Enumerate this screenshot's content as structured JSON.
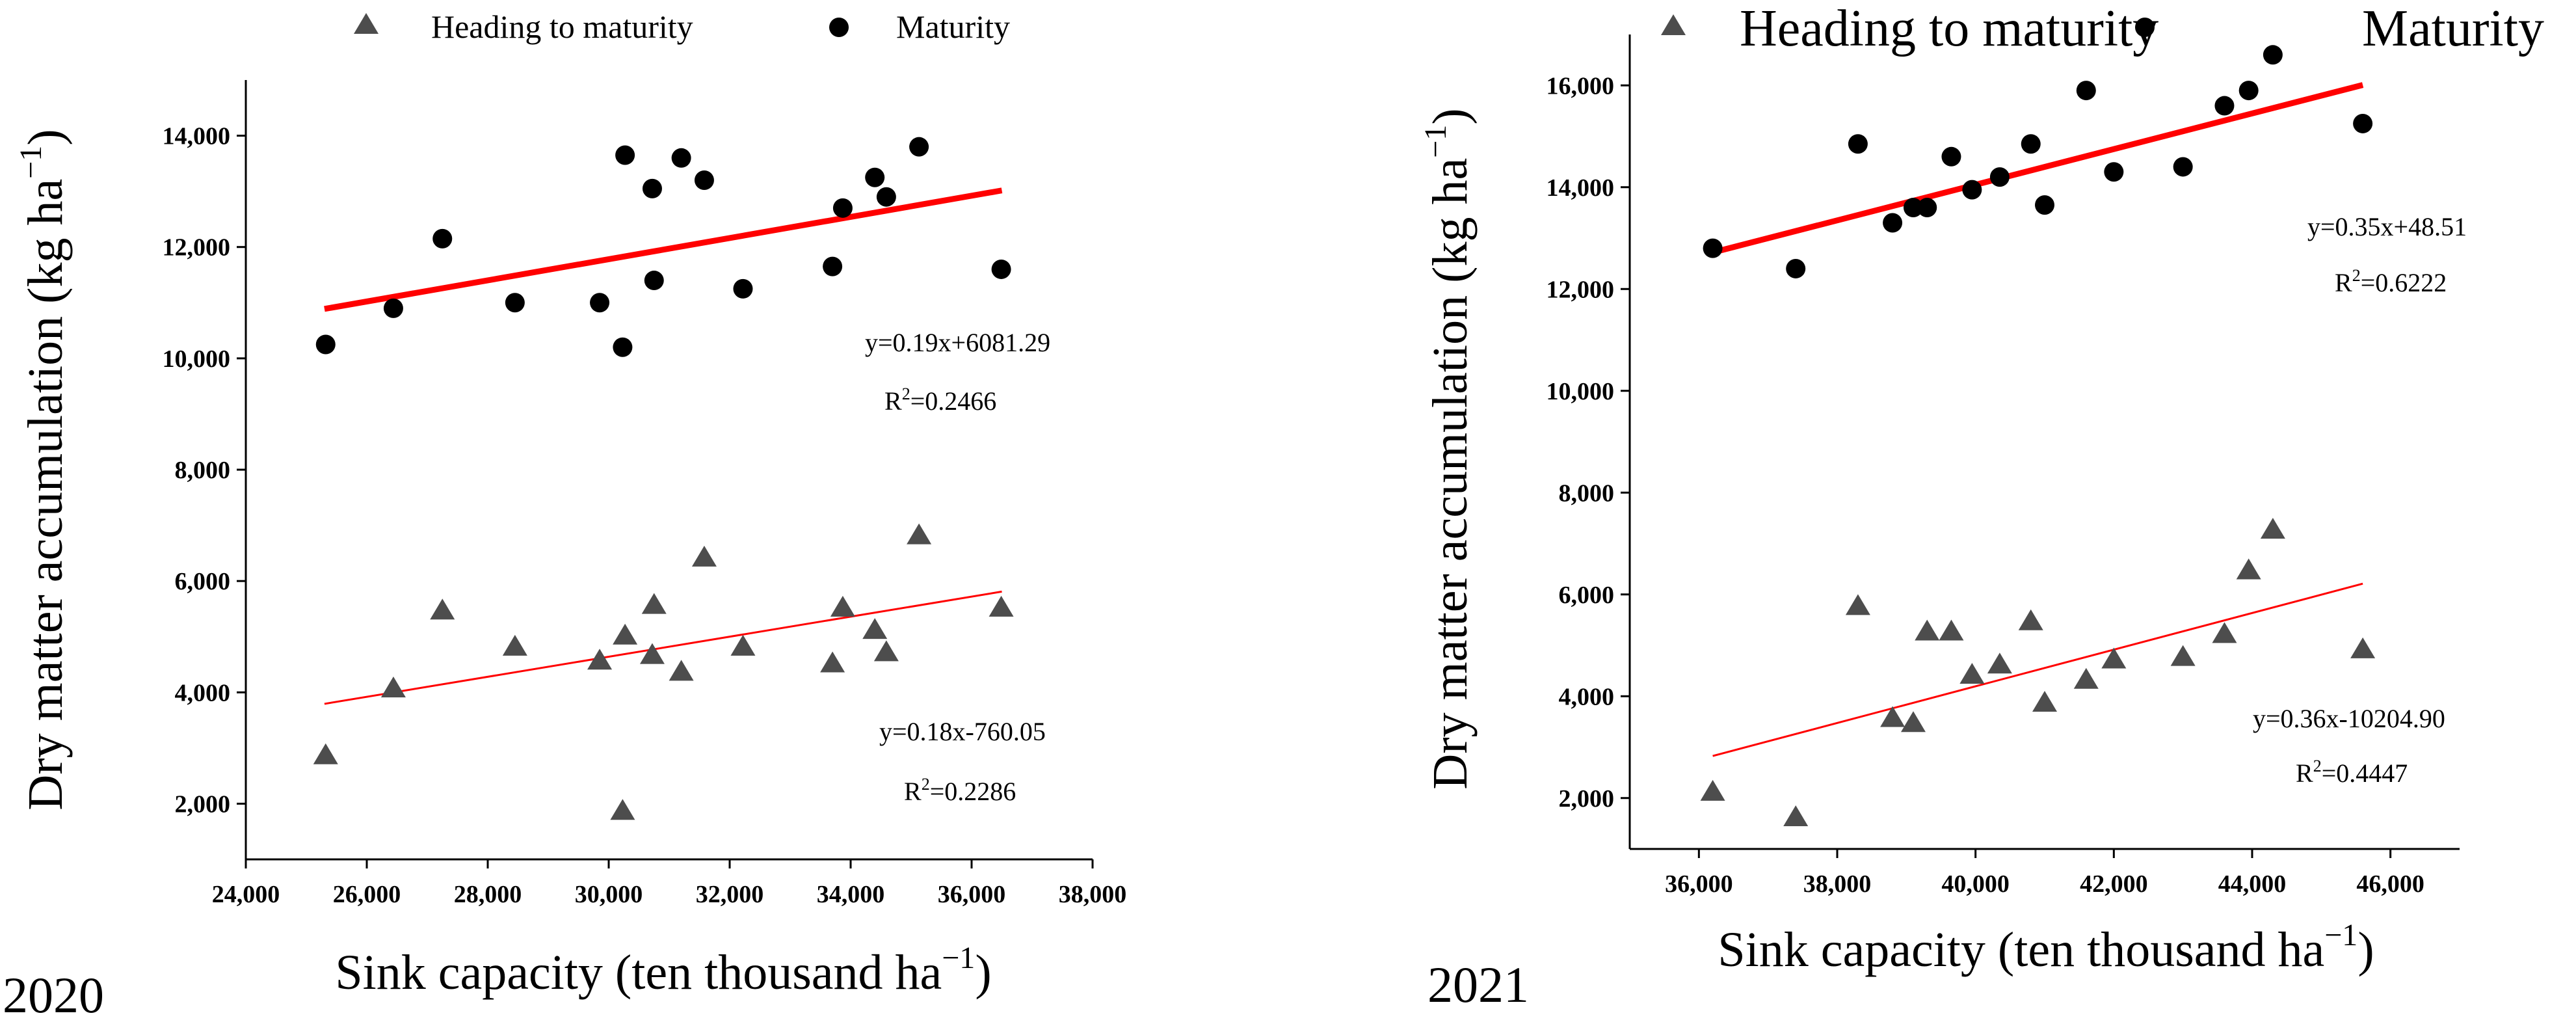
{
  "figure": {
    "panels": [
      "2020",
      "2021"
    ]
  },
  "colors": {
    "maturity_points": "#000000",
    "heading_points": "#4d4d4d",
    "fit_line": "#ff0000",
    "axis": "#000000"
  },
  "chart_data": [
    {
      "type": "scatter",
      "panel_label": "2020",
      "xlabel_main": "Sink capacity (ten thousand ha",
      "xlabel_sup": "−1",
      "xlabel_close": ")",
      "ylabel_main": "Dry matter accumulation (kg ha",
      "ylabel_sup": "−1",
      "ylabel_close": ")",
      "xlim": [
        24000,
        38000
      ],
      "ylim": [
        1000,
        15000
      ],
      "x_ticks": [
        24000,
        26000,
        28000,
        30000,
        32000,
        34000,
        36000,
        38000
      ],
      "x_tick_labels": [
        "24,000",
        "26,000",
        "28,000",
        "30,000",
        "32,000",
        "34,000",
        "36,000",
        "38,000"
      ],
      "y_ticks": [
        2000,
        4000,
        6000,
        8000,
        10000,
        12000,
        14000
      ],
      "y_tick_labels": [
        "2,000",
        "4,000",
        "6,000",
        "8,000",
        "10,000",
        "12,000",
        "14,000"
      ],
      "legend": [
        {
          "name": "Heading to maturity",
          "marker": "triangle"
        },
        {
          "name": "Maturity",
          "marker": "circle"
        }
      ],
      "series": [
        {
          "name": "Maturity",
          "marker": "circle",
          "x": [
            25320,
            26440,
            27250,
            28450,
            29850,
            30230,
            30270,
            30720,
            30750,
            31200,
            31580,
            32220,
            33700,
            33870,
            34400,
            34590,
            35130,
            36490
          ],
          "y": [
            10250,
            10900,
            12150,
            11000,
            11000,
            10200,
            13650,
            13050,
            11400,
            13600,
            13200,
            11250,
            11650,
            12700,
            13250,
            12900,
            13800,
            11600
          ],
          "fit": {
            "slope": 0.19,
            "intercept": 6081.29,
            "x_range": [
              25300,
              36500
            ],
            "label": "y=0.19x+6081.29",
            "r2_prefix": "R",
            "r2_sup": "2",
            "r2_value": "=0.2466"
          }
        },
        {
          "name": "Heading to maturity",
          "marker": "triangle",
          "x": [
            25320,
            26440,
            27250,
            28450,
            29850,
            30230,
            30270,
            30720,
            30750,
            31200,
            31580,
            32220,
            33700,
            33870,
            34400,
            34590,
            35130,
            36490
          ],
          "y": [
            2850,
            4050,
            5450,
            4800,
            4550,
            1850,
            5000,
            4650,
            5550,
            4350,
            6400,
            4800,
            4500,
            5500,
            5100,
            4700,
            6800,
            5500
          ],
          "fit": {
            "slope": 0.18,
            "intercept": -760.05,
            "x_range": [
              25300,
              36500
            ],
            "label": "y=0.18x-760.05",
            "r2_prefix": "R",
            "r2_sup": "2",
            "r2_value": "=0.2286"
          }
        }
      ]
    },
    {
      "type": "scatter",
      "panel_label": "2021",
      "xlabel_main": "Sink capacity (ten thousand ha",
      "xlabel_sup": "−1",
      "xlabel_close": ")",
      "ylabel_main": "Dry matter accumulation (kg ha",
      "ylabel_sup": "−1",
      "ylabel_close": ")",
      "xlim": [
        35000,
        47000
      ],
      "ylim": [
        1000,
        17000
      ],
      "x_ticks": [
        36000,
        38000,
        40000,
        42000,
        44000,
        46000
      ],
      "x_tick_labels": [
        "36,000",
        "38,000",
        "40,000",
        "42,000",
        "44,000",
        "46,000"
      ],
      "y_ticks": [
        2000,
        4000,
        6000,
        8000,
        10000,
        12000,
        14000,
        16000
      ],
      "y_tick_labels": [
        "2,000",
        "4,000",
        "6,000",
        "8,000",
        "10,000",
        "12,000",
        "14,000",
        "16,000"
      ],
      "legend": [
        {
          "name": "Heading to maturity",
          "marker": "triangle"
        },
        {
          "name": "Maturity",
          "marker": "circle"
        }
      ],
      "series": [
        {
          "name": "Maturity",
          "marker": "circle",
          "x": [
            36200,
            37400,
            38300,
            38800,
            39100,
            39300,
            39650,
            39950,
            40350,
            40800,
            41000,
            41600,
            42000,
            43000,
            43600,
            43950,
            44300,
            45600
          ],
          "y": [
            12800,
            12400,
            14850,
            13300,
            13600,
            13600,
            14600,
            13950,
            14200,
            14850,
            13650,
            15900,
            14300,
            14400,
            15600,
            15900,
            16600,
            15250
          ],
          "fit": {
            "slope": 0.35,
            "intercept": 48.51,
            "x_range": [
              36200,
              45600
            ],
            "label": "y=0.35x+48.51",
            "r2_prefix": "R",
            "r2_sup": "2",
            "r2_value": "=0.6222"
          }
        },
        {
          "name": "Heading to maturity",
          "marker": "triangle",
          "x": [
            36200,
            37400,
            38300,
            38800,
            39100,
            39300,
            39650,
            39950,
            40350,
            40800,
            41000,
            41600,
            42000,
            43000,
            43600,
            43950,
            44300,
            45600
          ],
          "y": [
            2100,
            1600,
            5750,
            3550,
            3450,
            5250,
            5250,
            4400,
            4600,
            5450,
            3850,
            4300,
            4700,
            4750,
            5200,
            6450,
            7250,
            4900
          ],
          "fit": {
            "slope": 0.36,
            "intercept": -10204.9,
            "x_range": [
              36200,
              45600
            ],
            "label": "y=0.36x-10204.90",
            "r2_prefix": "R",
            "r2_sup": "2",
            "r2_value": "=0.4447"
          }
        }
      ]
    }
  ]
}
